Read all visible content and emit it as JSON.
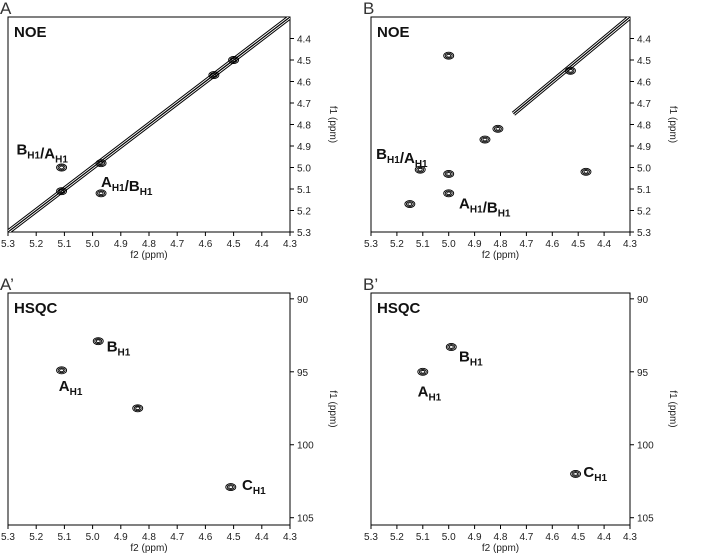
{
  "chart_data": [
    {
      "type": "contour",
      "panel": "A",
      "label": "NOE",
      "xlabel": "f2 (ppm)",
      "ylabel": "f1 (ppm)",
      "xlim": [
        5.3,
        4.3
      ],
      "ylim": [
        4.3,
        5.3
      ],
      "xticks": [
        5.3,
        5.2,
        5.1,
        {
          "value": 5,
          "label": "5.0"
        },
        4.9,
        4.8,
        4.7,
        4.6,
        4.5,
        4.4,
        4.3
      ],
      "yticks": [
        4.4,
        4.5,
        4.6,
        4.7,
        4.8,
        4.9,
        {
          "value": 5,
          "label": "5.0"
        },
        5.1,
        5.2,
        5.3
      ],
      "diagonal": [
        5.3,
        4.3
      ],
      "color": "#000000",
      "peaks": {
        "x": [
          5.11,
          4.97,
          5.11,
          4.97,
          4.5,
          4.57
        ],
        "y": [
          5.0,
          5.12,
          5.11,
          4.98,
          4.5,
          4.57
        ]
      },
      "annotations": [
        {
          "parts": [
            [
              "B",
              "H1"
            ],
            [
              "/A",
              "H1"
            ]
          ],
          "x": 5.27,
          "y": 4.94
        },
        {
          "parts": [
            [
              "A",
              "H1"
            ],
            [
              "/B",
              "H1"
            ]
          ],
          "x": 4.97,
          "y": 5.09
        }
      ]
    },
    {
      "type": "contour",
      "panel": "B",
      "label": "NOE",
      "xlabel": "f2 (ppm)",
      "ylabel": "f1 (ppm)",
      "xlim": [
        5.3,
        4.3
      ],
      "ylim": [
        4.3,
        5.3
      ],
      "xticks": [
        5.3,
        5.2,
        5.1,
        {
          "value": 5,
          "label": "5.0"
        },
        4.9,
        4.8,
        4.7,
        4.6,
        4.5,
        4.4,
        4.3
      ],
      "yticks": [
        4.4,
        4.5,
        4.6,
        4.7,
        4.8,
        4.9,
        {
          "value": 5,
          "label": "5.0"
        },
        5.1,
        5.2,
        5.3
      ],
      "diagonal": [
        4.75,
        4.3
      ],
      "color": "#000000",
      "peaks": {
        "x": [
          5.11,
          5.0,
          5.0,
          4.47,
          5.15,
          5.0,
          4.86,
          4.81,
          4.53
        ],
        "y": [
          5.01,
          5.12,
          4.48,
          5.02,
          5.17,
          5.03,
          4.87,
          4.82,
          4.55
        ]
      },
      "annotations": [
        {
          "parts": [
            [
              "B",
              "H1"
            ],
            [
              "/A",
              "H1"
            ]
          ],
          "x": 5.28,
          "y": 4.96
        },
        {
          "parts": [
            [
              "A",
              "H1"
            ],
            [
              "/B",
              "H1"
            ]
          ],
          "x": 4.96,
          "y": 5.19
        }
      ]
    },
    {
      "type": "contour",
      "panel": "A’",
      "label": "HSQC",
      "xlabel": "f2 (ppm)",
      "ylabel": "f1 (ppm)",
      "xlim": [
        5.3,
        4.3
      ],
      "ylim": [
        89.6,
        105.5
      ],
      "xticks": [
        5.3,
        5.2,
        5.1,
        {
          "value": 5,
          "label": "5.0"
        },
        4.9,
        4.8,
        4.7,
        4.6,
        4.5,
        4.4,
        4.3
      ],
      "yticks": [
        90,
        95,
        100,
        105
      ],
      "color": "#000000",
      "peaks": {
        "x": [
          5.11,
          4.98,
          4.84,
          4.51
        ],
        "y": [
          94.9,
          92.9,
          97.5,
          102.9
        ]
      },
      "annotations": [
        {
          "parts": [
            [
              "B",
              "H1"
            ]
          ],
          "x": 4.95,
          "y": 93.6
        },
        {
          "parts": [
            [
              "A",
              "H1"
            ]
          ],
          "x": 5.12,
          "y": 96.3
        },
        {
          "parts": [
            [
              "C",
              "H1"
            ]
          ],
          "x": 4.47,
          "y": 103.1
        }
      ]
    },
    {
      "type": "contour",
      "panel": "B’",
      "label": "HSQC",
      "xlabel": "f2 (ppm)",
      "ylabel": "f1 (ppm)",
      "xlim": [
        5.3,
        4.3
      ],
      "ylim": [
        89.6,
        105.5
      ],
      "xticks": [
        5.3,
        5.2,
        5.1,
        {
          "value": 5,
          "label": "5.0"
        },
        4.9,
        4.8,
        4.7,
        4.6,
        4.5,
        4.4,
        4.3
      ],
      "yticks": [
        90,
        95,
        100,
        105
      ],
      "color": "#000000",
      "peaks": {
        "x": [
          5.1,
          4.99,
          4.51
        ],
        "y": [
          95.0,
          93.3,
          102.0
        ]
      },
      "annotations": [
        {
          "parts": [
            [
              "B",
              "H1"
            ]
          ],
          "x": 4.96,
          "y": 94.3
        },
        {
          "parts": [
            [
              "A",
              "H1"
            ]
          ],
          "x": 5.12,
          "y": 96.7
        },
        {
          "parts": [
            [
              "C",
              "H1"
            ]
          ],
          "x": 4.48,
          "y": 102.2
        }
      ]
    }
  ]
}
